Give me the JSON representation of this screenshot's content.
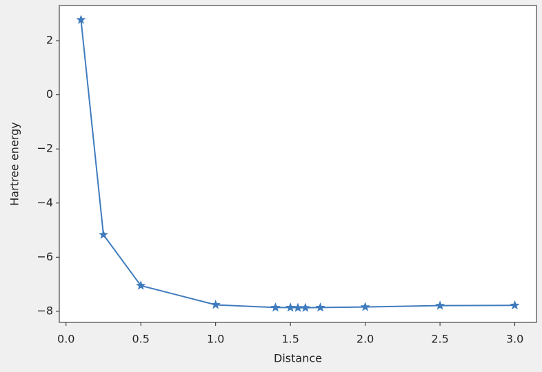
{
  "chart_data": {
    "type": "line",
    "xlabel": "Distance",
    "ylabel": "Hartree energy",
    "x": [
      0.1,
      0.25,
      0.5,
      1.0,
      1.4,
      1.5,
      1.55,
      1.6,
      1.7,
      2.0,
      2.5,
      3.0
    ],
    "values": [
      2.77,
      -5.17,
      -7.05,
      -7.76,
      -7.86,
      -7.86,
      -7.87,
      -7.87,
      -7.86,
      -7.84,
      -7.79,
      -7.78
    ],
    "color": "#3f7bbd",
    "marker": "star",
    "xlim": [
      -0.045,
      3.145
    ],
    "xticks": [
      {
        "value": 0,
        "label": "0.0"
      },
      0.5,
      {
        "value": 1,
        "label": "1.0"
      },
      1.5,
      {
        "value": 2,
        "label": "2.0"
      },
      2.5,
      {
        "value": 3,
        "label": "3.0"
      }
    ],
    "ylim": [
      -8.41,
      3.3
    ],
    "yticks": [
      {
        "value": -8,
        "label": "−8"
      },
      {
        "value": -6,
        "label": "−6"
      },
      {
        "value": -4,
        "label": "−4"
      },
      {
        "value": -2,
        "label": "−2"
      },
      0,
      2
    ]
  }
}
